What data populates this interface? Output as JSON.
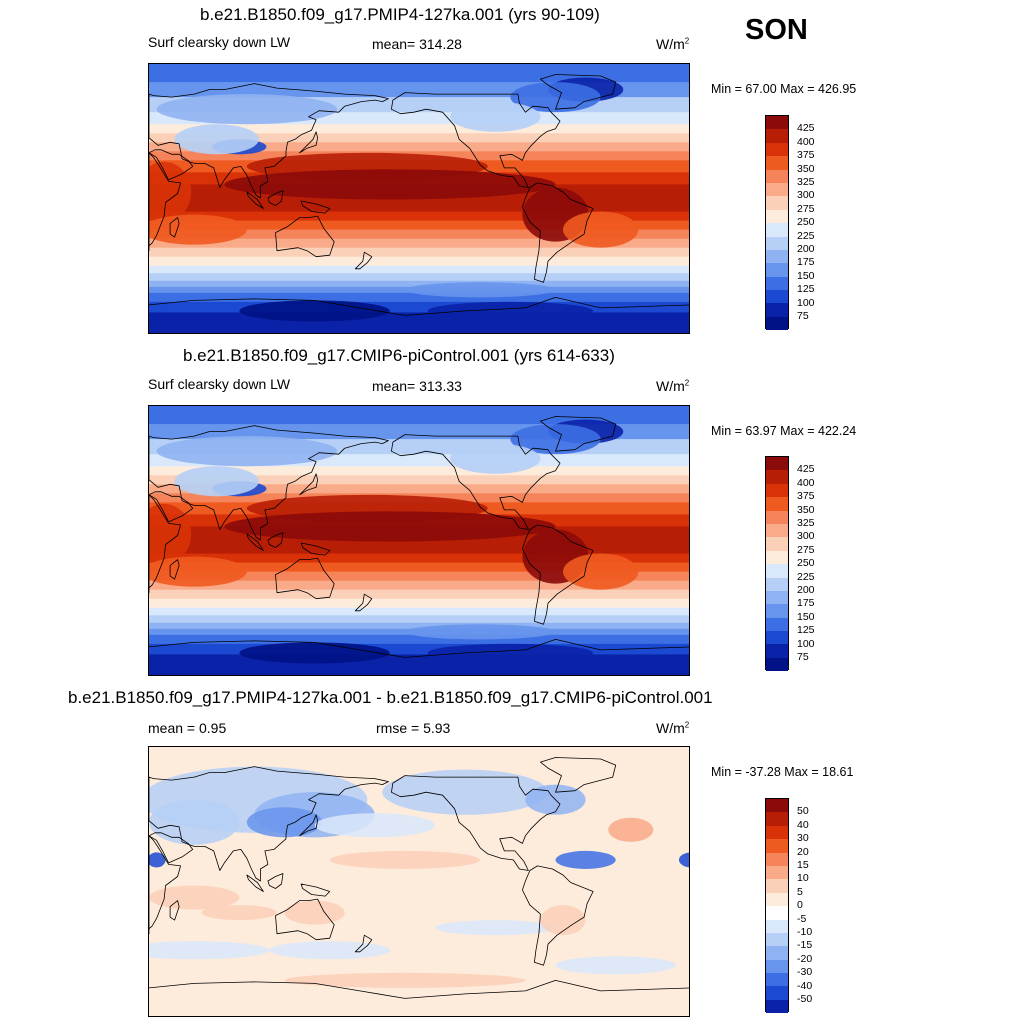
{
  "season": "SON",
  "panels": [
    {
      "title": "b.e21.B1850.f09_g17.PMIP4-127ka.001 (yrs 90-109)",
      "left_label": "Surf clearsky down LW",
      "center_label": "mean= 314.28",
      "units_base": "W/m",
      "units_exp": "2",
      "minmax": "Min =  67.00 Max = 426.95",
      "kind": "absolute",
      "colorbar": [
        "425",
        "400",
        "375",
        "350",
        "325",
        "300",
        "275",
        "250",
        "225",
        "200",
        "175",
        "150",
        "125",
        "100",
        "75"
      ]
    },
    {
      "title": "b.e21.B1850.f09_g17.CMIP6-piControl.001 (yrs 614-633)",
      "left_label": "Surf clearsky down LW",
      "center_label": "mean= 313.33",
      "units_base": "W/m",
      "units_exp": "2",
      "minmax": "Min =  63.97 Max = 422.24",
      "kind": "absolute",
      "colorbar": [
        "425",
        "400",
        "375",
        "350",
        "325",
        "300",
        "275",
        "250",
        "225",
        "200",
        "175",
        "150",
        "125",
        "100",
        "75"
      ]
    },
    {
      "title": "b.e21.B1850.f09_g17.PMIP4-127ka.001 - b.e21.B1850.f09_g17.CMIP6-piControl.001",
      "left_label": "mean =   0.95",
      "center_label": "rmse =   5.93",
      "units_base": "W/m",
      "units_exp": "2",
      "minmax": "Min = -37.28 Max =  18.61",
      "kind": "difference",
      "colorbar": [
        "50",
        "40",
        "30",
        "20",
        "15",
        "10",
        "5",
        "0",
        "-5",
        "-10",
        "-15",
        "-20",
        "-30",
        "-40",
        "-50"
      ]
    }
  ],
  "colors": {
    "absolute": [
      "#8b0a0a",
      "#b81e06",
      "#d93208",
      "#ef5a20",
      "#f5845a",
      "#f9aa88",
      "#fbd0b8",
      "#fdecdc",
      "#d9e8fa",
      "#b5cff6",
      "#8fb3f2",
      "#6794ec",
      "#3d6fe4",
      "#1b49d2",
      "#0a22a8",
      "#001285"
    ],
    "difference": [
      "#8b0a0a",
      "#b81e06",
      "#d93208",
      "#ef5a20",
      "#f5845a",
      "#f9aa88",
      "#fbd0b8",
      "#fdecdc",
      "#ffffff",
      "#d9e8fa",
      "#b5cff6",
      "#8fb3f2",
      "#6794ec",
      "#3d6fe4",
      "#1b49d2",
      "#0a22a8",
      "#001285"
    ]
  }
}
